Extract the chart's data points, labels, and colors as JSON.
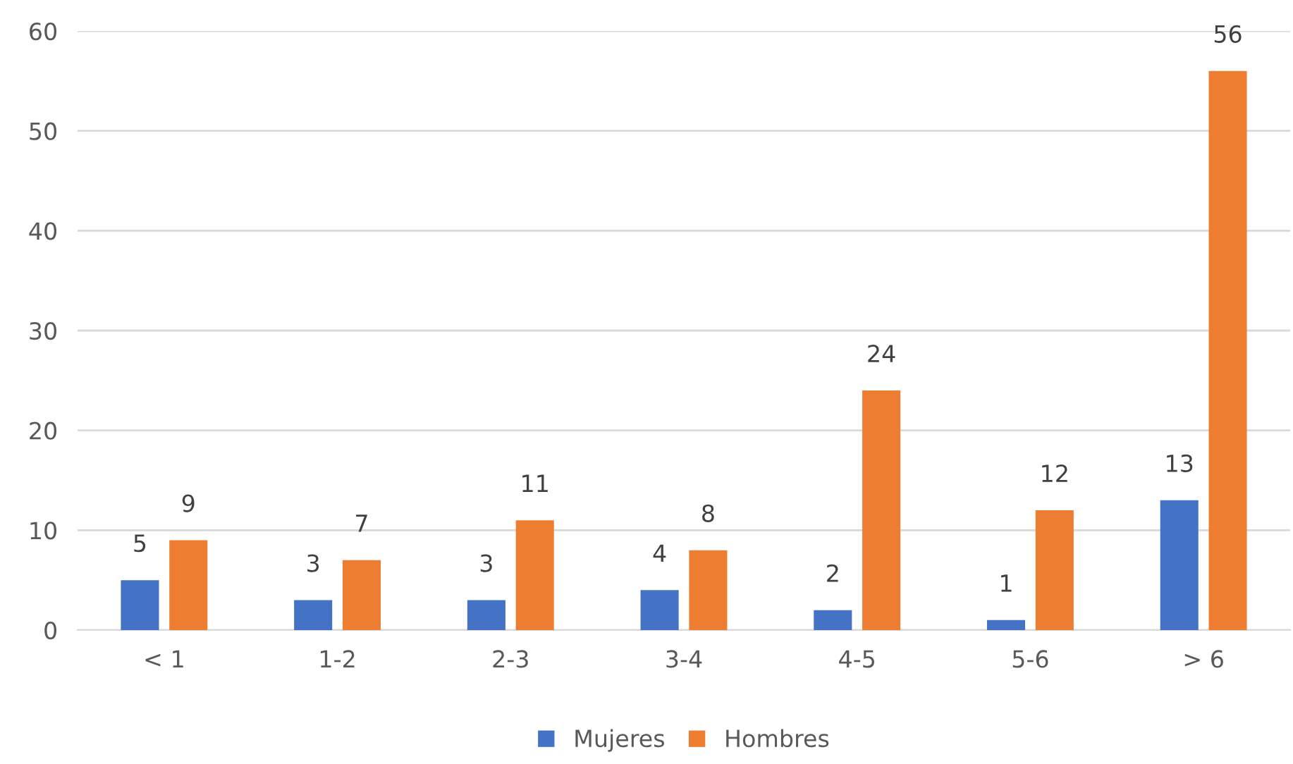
{
  "chart_data": {
    "type": "bar",
    "categories": [
      "< 1",
      "1-2",
      "2-3",
      "3-4",
      "4-5",
      "5-6",
      "> 6"
    ],
    "series": [
      {
        "name": "Mujeres",
        "color": "#4472c4",
        "values": [
          5,
          3,
          3,
          4,
          2,
          1,
          13
        ]
      },
      {
        "name": "Hombres",
        "color": "#ed7d31",
        "values": [
          9,
          7,
          11,
          8,
          24,
          12,
          56
        ]
      }
    ],
    "ylim": [
      0,
      60
    ],
    "yticks": [
      0,
      10,
      20,
      30,
      40,
      50,
      60
    ],
    "grid": "y",
    "legend": "bottom",
    "data_labels": true
  }
}
